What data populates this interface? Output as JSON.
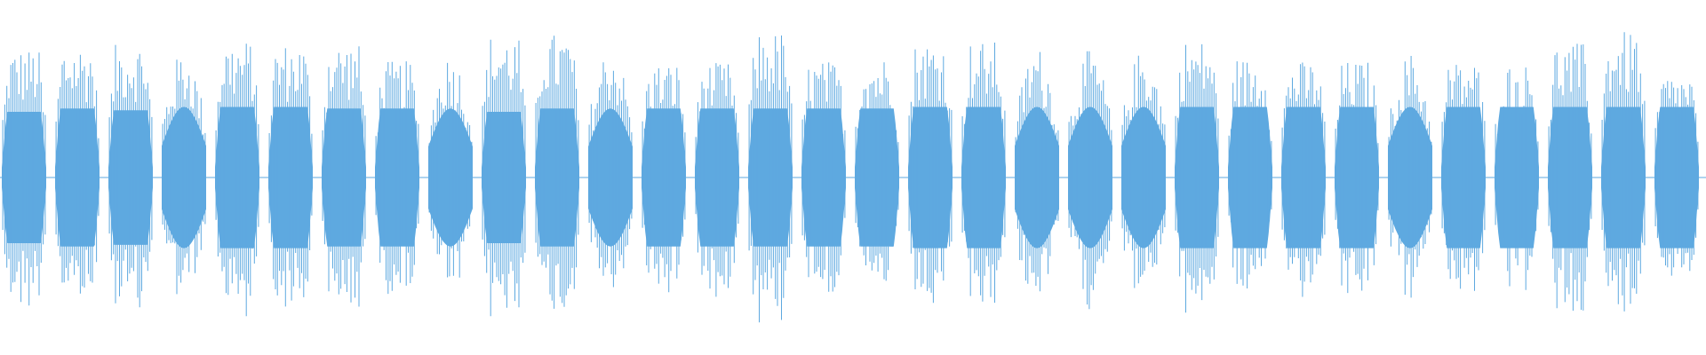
{
  "waveform": {
    "color": "#5ea9e0",
    "centerline_color": "#5ea9e0",
    "background": "#ffffff",
    "segment_count": 32,
    "segments": [
      {
        "peak": 0.79,
        "core": 0.4,
        "shape": "flat"
      },
      {
        "peak": 0.82,
        "core": 0.42,
        "shape": "flat"
      },
      {
        "peak": 0.83,
        "core": 0.41,
        "shape": "flat"
      },
      {
        "peak": 0.78,
        "core": 0.43,
        "shape": "bulge"
      },
      {
        "peak": 0.84,
        "core": 0.43,
        "shape": "flat"
      },
      {
        "peak": 0.82,
        "core": 0.43,
        "shape": "flat"
      },
      {
        "peak": 0.83,
        "core": 0.42,
        "shape": "flat"
      },
      {
        "peak": 0.71,
        "core": 0.42,
        "shape": "flat"
      },
      {
        "peak": 0.76,
        "core": 0.42,
        "shape": "bulge"
      },
      {
        "peak": 0.87,
        "core": 0.4,
        "shape": "flat"
      },
      {
        "peak": 0.88,
        "core": 0.42,
        "shape": "flat"
      },
      {
        "peak": 0.81,
        "core": 0.42,
        "shape": "bulge"
      },
      {
        "peak": 0.7,
        "core": 0.42,
        "shape": "flat"
      },
      {
        "peak": 0.7,
        "core": 0.42,
        "shape": "flat"
      },
      {
        "peak": 0.89,
        "core": 0.42,
        "shape": "flat"
      },
      {
        "peak": 0.71,
        "core": 0.42,
        "shape": "flat"
      },
      {
        "peak": 0.74,
        "core": 0.42,
        "shape": "flat"
      },
      {
        "peak": 0.84,
        "core": 0.43,
        "shape": "flat"
      },
      {
        "peak": 0.83,
        "core": 0.43,
        "shape": "flat"
      },
      {
        "peak": 0.8,
        "core": 0.43,
        "shape": "bulge"
      },
      {
        "peak": 0.78,
        "core": 0.43,
        "shape": "bulge"
      },
      {
        "peak": 0.79,
        "core": 0.43,
        "shape": "bulge"
      },
      {
        "peak": 0.84,
        "core": 0.43,
        "shape": "flat"
      },
      {
        "peak": 0.73,
        "core": 0.43,
        "shape": "flat"
      },
      {
        "peak": 0.71,
        "core": 0.43,
        "shape": "flat"
      },
      {
        "peak": 0.71,
        "core": 0.43,
        "shape": "flat"
      },
      {
        "peak": 0.76,
        "core": 0.43,
        "shape": "bulge"
      },
      {
        "peak": 0.71,
        "core": 0.43,
        "shape": "flat"
      },
      {
        "peak": 0.69,
        "core": 0.43,
        "shape": "flat"
      },
      {
        "peak": 0.82,
        "core": 0.43,
        "shape": "flat"
      },
      {
        "peak": 0.89,
        "core": 0.43,
        "shape": "flat"
      },
      {
        "peak": 0.63,
        "core": 0.43,
        "shape": "flat"
      }
    ]
  }
}
